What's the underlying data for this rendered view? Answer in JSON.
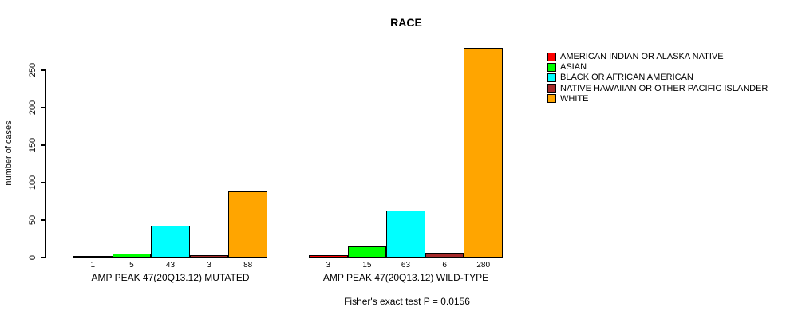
{
  "chart_data": {
    "type": "bar",
    "title": "RACE",
    "ylabel": "number of cases",
    "footnote": "Fisher's exact test P = 0.0156",
    "ylim": [
      0,
      250
    ],
    "yticks": [
      0,
      50,
      100,
      150,
      200,
      250
    ],
    "grid": false,
    "legend_position": "right",
    "categories": [
      "AMP PEAK 47(20Q13.12) MUTATED",
      "AMP PEAK 47(20Q13.12) WILD-TYPE"
    ],
    "series": [
      {
        "name": "AMERICAN INDIAN OR ALASKA NATIVE",
        "color": "#FF0000",
        "values": [
          1,
          3
        ]
      },
      {
        "name": "ASIAN",
        "color": "#00FF00",
        "values": [
          5,
          15
        ]
      },
      {
        "name": "BLACK OR AFRICAN AMERICAN",
        "color": "#00FFFF",
        "values": [
          43,
          63
        ]
      },
      {
        "name": "NATIVE HAWAIIAN OR OTHER PACIFIC ISLANDER",
        "color": "#A52A2A",
        "values": [
          3,
          6
        ]
      },
      {
        "name": "WHITE",
        "color": "#FFA500",
        "values": [
          88,
          280
        ]
      }
    ]
  }
}
